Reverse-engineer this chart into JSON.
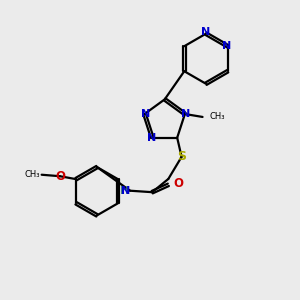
{
  "background_color": "#ebebeb",
  "bond_color": "#000000",
  "n_color": "#0000cc",
  "o_color": "#cc0000",
  "s_color": "#aaaa00",
  "h_color": "#408080",
  "figsize": [
    3.0,
    3.0
  ],
  "dpi": 100,
  "xlim": [
    0,
    10
  ],
  "ylim": [
    0,
    10
  ]
}
